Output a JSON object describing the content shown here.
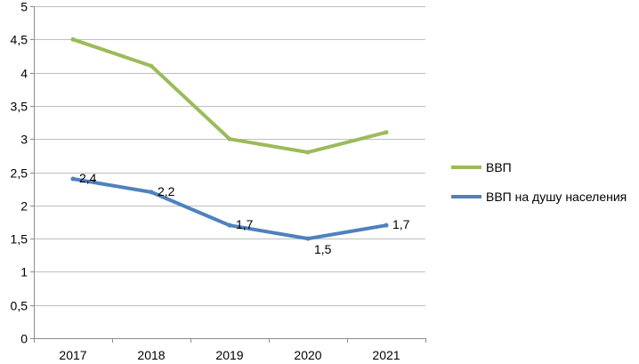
{
  "chart_data": {
    "type": "line",
    "title": "",
    "xlabel": "",
    "ylabel": "",
    "categories": [
      "2017",
      "2018",
      "2019",
      "2020",
      "2021"
    ],
    "ylim": [
      0,
      5
    ],
    "yticks": [
      "0",
      "0,5",
      "1",
      "1,5",
      "2",
      "2,5",
      "3",
      "3,5",
      "4",
      "4,5",
      "5"
    ],
    "grid": true,
    "legend_position": "right",
    "series": [
      {
        "name": "ВВП",
        "color": "#9bbb59",
        "values": [
          4.5,
          4.1,
          3.0,
          2.8,
          3.1
        ],
        "data_labels": null
      },
      {
        "name": "ВВП на душу населения",
        "color": "#4f81bd",
        "values": [
          2.4,
          2.2,
          1.7,
          1.5,
          1.7
        ],
        "data_labels": [
          "2,4",
          "2,2",
          "1,7",
          "1,5",
          "1,7"
        ]
      }
    ]
  }
}
